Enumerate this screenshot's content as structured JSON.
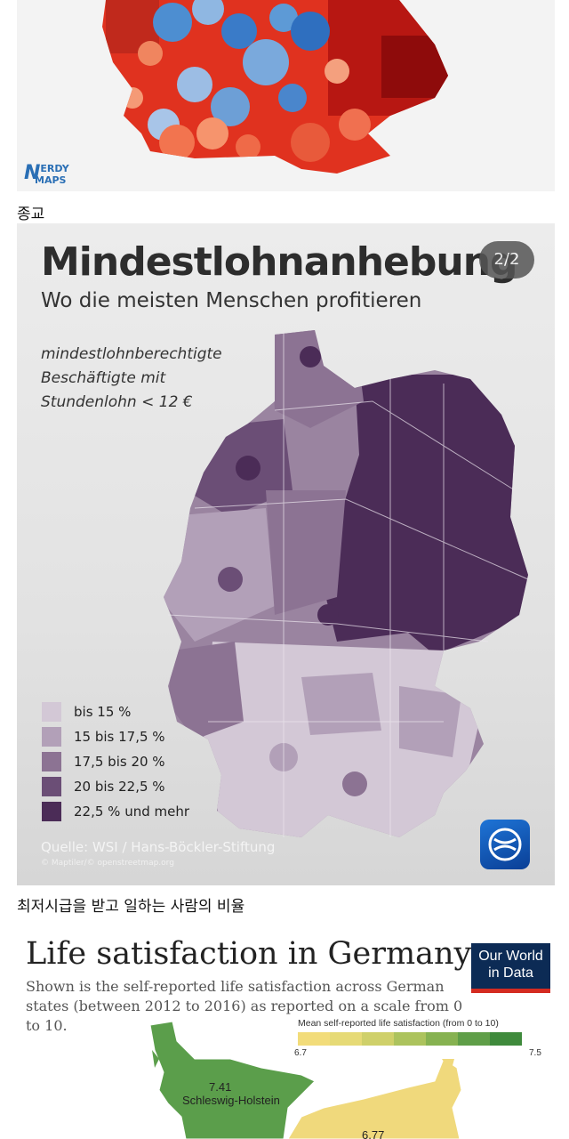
{
  "panel1": {
    "logo_top": "ERDY",
    "logo_bottom": "APS",
    "logo_initial_top": "N",
    "logo_initial_bottom": "M"
  },
  "caption1": "종교",
  "panel2": {
    "title": "Mindestlohnanhebung",
    "subtitle": "Wo die meisten Menschen profitieren",
    "page_indicator": "2/2",
    "description_lines": [
      "mindestlohnberechtigte",
      "Beschäftigte mit",
      "Stundenlohn < 12 €"
    ],
    "legend": [
      {
        "label": "bis 15 %",
        "color": "#d3c8d6"
      },
      {
        "label": "15 bis 17,5 %",
        "color": "#b2a0b8"
      },
      {
        "label": "17,5 bis 20 %",
        "color": "#8c7393"
      },
      {
        "label": "20 bis 22,5 %",
        "color": "#6b4e76"
      },
      {
        "label": "22,5 % und mehr",
        "color": "#4b2c57"
      }
    ],
    "source": "Quelle: WSI / Hans-Böckler-Stiftung",
    "credit": "© Maptiler/© openstreetmap.org"
  },
  "caption2": "최저시급을 받고 일하는 사람의 비율",
  "panel3": {
    "title": "Life satisfaction in Germany",
    "subtitle": "Shown is the self-reported life satisfaction across German states (between 2012 to 2016) as reported on a scale from 0 to 10.",
    "logo_line1": "Our World",
    "logo_line2": "in Data",
    "scale_title": "Mean self-reported life satisfaction (from 0 to 10)",
    "scale_min": "6.7",
    "scale_max": "7.5",
    "scale_colors": [
      "#f2dc7a",
      "#e6da76",
      "#cfd06a",
      "#acc35d",
      "#86b251",
      "#5f9e48",
      "#3f8a3c"
    ],
    "regions": [
      {
        "name": "Schleswig-Holstein",
        "value": "7.41"
      },
      {
        "name": "",
        "value": "6.77"
      }
    ]
  },
  "colors": {
    "accent_red": "#c8281e",
    "accent_blue": "#3d7fc4",
    "purple_dark": "#4b2c57",
    "green_sh": "#5b9e4b",
    "yellow_state": "#f0d97c"
  }
}
